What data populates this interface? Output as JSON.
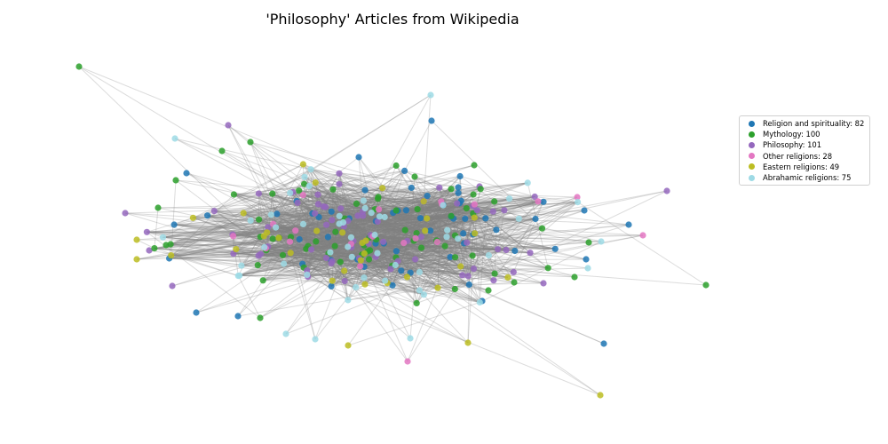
{
  "title": "'Philosophy' Articles from Wikipedia",
  "legend": [
    {
      "label": "Religion and spirituality: 82",
      "color": "#1f77b4"
    },
    {
      "label": "Mythology: 100",
      "color": "#2ca02c"
    },
    {
      "label": "Philosophy: 101",
      "color": "#9467bd"
    },
    {
      "label": "Other religions: 28",
      "color": "#e377c2"
    },
    {
      "label": "Eastern religions: 49",
      "color": "#bcbd22"
    },
    {
      "label": "Abrahamic religions: 75",
      "color": "#9edae5"
    }
  ],
  "chart_data": {
    "type": "network",
    "title": "'Philosophy' Articles from Wikipedia",
    "edge_color": "#808080",
    "legend_placement": "right",
    "groups": [
      {
        "name": "Religion and spirituality",
        "count": 82,
        "color": "#1f77b4"
      },
      {
        "name": "Mythology",
        "count": 100,
        "color": "#2ca02c"
      },
      {
        "name": "Philosophy",
        "count": 101,
        "color": "#9467bd"
      },
      {
        "name": "Other religions",
        "count": 28,
        "color": "#e377c2"
      },
      {
        "name": "Eastern religions",
        "count": 49,
        "color": "#bcbd22"
      },
      {
        "name": "Abrahamic religions",
        "count": 75,
        "color": "#9edae5"
      }
    ]
  }
}
